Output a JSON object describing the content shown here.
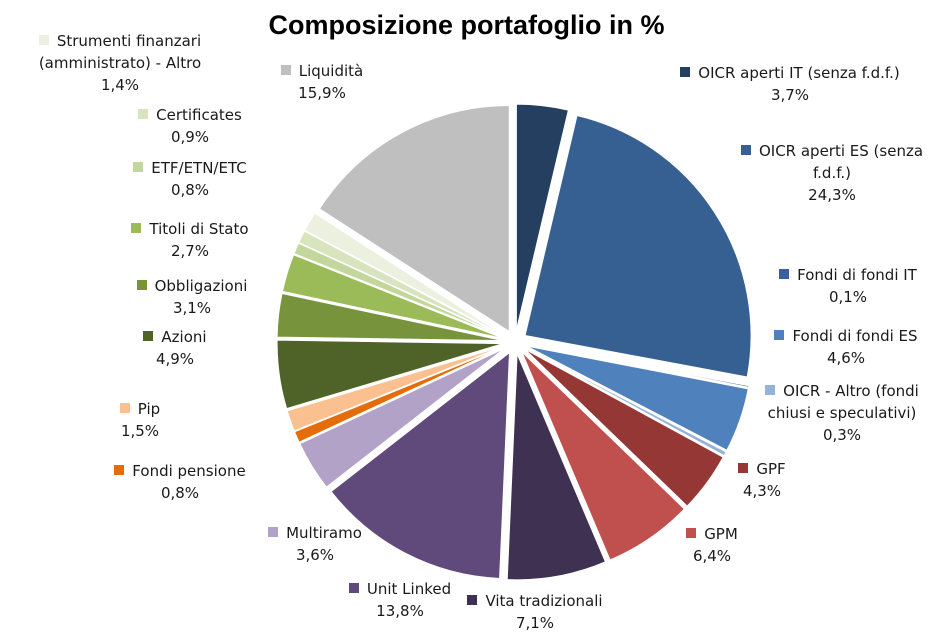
{
  "chart_data": {
    "type": "pie",
    "title": "Composizione portafoglio in %",
    "categories": [
      "OICR aperti IT (senza f.d.f.)",
      "OICR aperti ES (senza f.d.f.)",
      "Fondi di fondi IT",
      "Fondi di fondi ES",
      "OICR - Altro (fondi chiusi e speculativi)",
      "GPF",
      "GPM",
      "Vita tradizionali",
      "Unit Linked",
      "Multiramo",
      "Fondi pensione",
      "Pip",
      "Azioni",
      "Obbligazioni",
      "Titoli di Stato",
      "ETF/ETN/ETC",
      "Certificates",
      "Strumenti finanzari (amministrato) - Altro",
      "Liquidità"
    ],
    "values": [
      3.7,
      24.3,
      0.1,
      4.6,
      0.3,
      4.3,
      6.4,
      7.1,
      13.8,
      3.6,
      0.8,
      1.5,
      4.9,
      3.1,
      2.7,
      0.8,
      0.9,
      1.4,
      15.9
    ],
    "value_labels": [
      "3,7%",
      "24,3%",
      "0,1%",
      "4,6%",
      "0,3%",
      "4,3%",
      "6,4%",
      "7,1%",
      "13,8%",
      "3,6%",
      "0,8%",
      "1,5%",
      "4,9%",
      "3,1%",
      "2,7%",
      "0,8%",
      "0,9%",
      "1,4%",
      "15,9%"
    ],
    "colors": [
      "#243f60",
      "#376092",
      "#3a5f9a",
      "#4f81bd",
      "#95b3d7",
      "#953735",
      "#c0504d",
      "#3f3151",
      "#604a7b",
      "#b3a2c7",
      "#e46c0a",
      "#fac090",
      "#4f6228",
      "#77933c",
      "#9bbb59",
      "#c3d69b",
      "#d7e4bd",
      "#ebf1de",
      "#bfbfbf"
    ]
  }
}
